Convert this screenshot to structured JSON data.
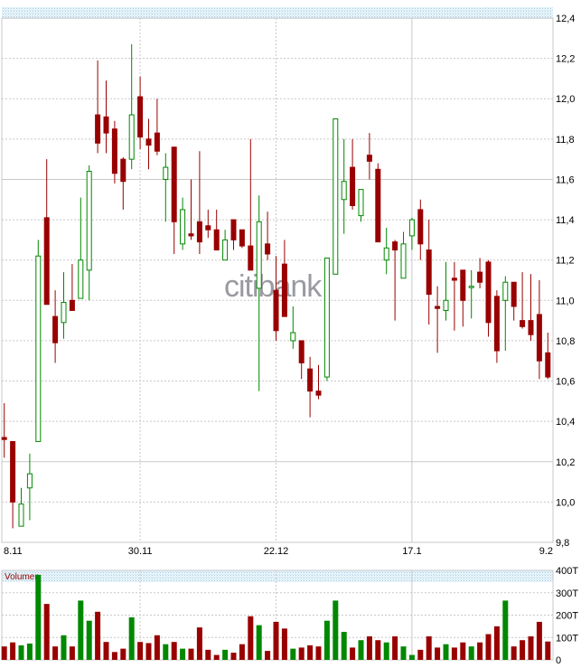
{
  "chart_data": [
    {
      "type": "candlestick",
      "watermark": "citibank",
      "ylim": [
        9.8,
        12.4
      ],
      "y_ticks": [
        "12,4",
        "12,2",
        "12,0",
        "11,8",
        "11,6",
        "11,4",
        "11,2",
        "11,0",
        "10,8",
        "10,6",
        "10,4",
        "10,2",
        "10,0",
        "9,8"
      ],
      "x_tick_labels": [
        {
          "label": "8.11",
          "index": 0
        },
        {
          "label": "30.11",
          "index": 16
        },
        {
          "label": "22.12",
          "index": 32
        },
        {
          "label": "17.1",
          "index": 48
        },
        {
          "label": "9.2",
          "index": 64
        }
      ],
      "grid": true,
      "colors": {
        "up": "#008800",
        "down": "#990000"
      },
      "ohlc": [
        [
          10.32,
          10.49,
          10.22,
          10.31
        ],
        [
          10.3,
          10.3,
          9.87,
          10.0
        ],
        [
          9.88,
          10.07,
          9.88,
          9.99
        ],
        [
          10.07,
          10.24,
          9.91,
          10.14
        ],
        [
          10.3,
          11.3,
          10.3,
          11.22
        ],
        [
          11.41,
          11.7,
          10.98,
          10.98
        ],
        [
          10.92,
          11.05,
          10.69,
          10.79
        ],
        [
          10.89,
          11.14,
          10.81,
          10.99
        ],
        [
          11.0,
          11.18,
          10.95,
          10.95
        ],
        [
          11.01,
          11.51,
          11.01,
          11.2
        ],
        [
          11.15,
          11.67,
          11.0,
          11.64
        ],
        [
          11.92,
          12.19,
          11.73,
          11.78
        ],
        [
          11.91,
          12.09,
          11.73,
          11.83
        ],
        [
          11.85,
          11.89,
          11.58,
          11.63
        ],
        [
          11.7,
          11.71,
          11.45,
          11.59
        ],
        [
          11.7,
          12.27,
          11.65,
          11.92
        ],
        [
          12.01,
          12.11,
          11.75,
          11.81
        ],
        [
          11.8,
          11.9,
          11.65,
          11.77
        ],
        [
          11.83,
          12.0,
          11.72,
          11.74
        ],
        [
          11.6,
          11.73,
          11.39,
          11.66
        ],
        [
          11.76,
          11.76,
          11.23,
          11.39
        ],
        [
          11.28,
          11.51,
          11.25,
          11.45
        ],
        [
          11.33,
          11.6,
          11.3,
          11.32
        ],
        [
          11.39,
          11.74,
          11.23,
          11.29
        ],
        [
          11.37,
          11.45,
          11.31,
          11.35
        ],
        [
          11.35,
          11.45,
          11.25,
          11.25
        ],
        [
          11.2,
          11.35,
          11.2,
          11.3
        ],
        [
          11.4,
          11.4,
          11.25,
          11.3
        ],
        [
          11.35,
          11.35,
          11.26,
          11.27
        ],
        [
          11.27,
          11.8,
          11.15,
          11.15
        ],
        [
          11.06,
          11.52,
          10.55,
          11.39
        ],
        [
          11.28,
          11.44,
          11.2,
          11.23
        ],
        [
          11.05,
          11.22,
          10.8,
          10.85
        ],
        [
          11.18,
          11.3,
          10.92,
          10.92
        ],
        [
          10.8,
          10.97,
          10.76,
          10.84
        ],
        [
          10.8,
          10.8,
          10.61,
          10.69
        ],
        [
          10.66,
          10.72,
          10.42,
          10.55
        ],
        [
          10.55,
          10.68,
          10.51,
          10.53
        ],
        [
          10.62,
          11.21,
          10.6,
          11.21
        ],
        [
          11.13,
          11.9,
          11.13,
          11.9
        ],
        [
          11.5,
          11.8,
          11.33,
          11.59
        ],
        [
          11.66,
          11.8,
          11.45,
          11.47
        ],
        [
          11.42,
          11.55,
          11.39,
          11.55
        ],
        [
          11.72,
          11.83,
          11.6,
          11.69
        ],
        [
          11.65,
          11.68,
          11.29,
          11.29
        ],
        [
          11.2,
          11.36,
          11.13,
          11.26
        ],
        [
          11.29,
          11.3,
          10.9,
          11.25
        ],
        [
          11.11,
          11.34,
          11.11,
          11.28
        ],
        [
          11.32,
          11.41,
          11.25,
          11.4
        ],
        [
          11.45,
          11.5,
          11.2,
          11.28
        ],
        [
          11.25,
          11.4,
          10.88,
          11.03
        ],
        [
          10.97,
          11.07,
          10.74,
          10.96
        ],
        [
          10.95,
          11.19,
          10.9,
          11.0
        ],
        [
          11.11,
          11.19,
          10.85,
          11.1
        ],
        [
          11.15,
          11.15,
          10.87,
          11.0
        ],
        [
          11.07,
          11.15,
          10.91,
          11.07
        ],
        [
          11.14,
          11.21,
          11.06,
          11.09
        ],
        [
          11.19,
          11.2,
          10.82,
          10.89
        ],
        [
          11.02,
          11.05,
          10.69,
          10.75
        ],
        [
          11.0,
          11.12,
          10.75,
          11.09
        ],
        [
          11.09,
          11.09,
          10.9,
          10.97
        ],
        [
          10.9,
          11.14,
          10.86,
          10.87
        ],
        [
          10.9,
          11.13,
          10.8,
          10.83
        ],
        [
          10.93,
          11.1,
          10.61,
          10.7
        ],
        [
          10.74,
          10.84,
          10.61,
          10.62
        ]
      ]
    },
    {
      "type": "bar",
      "title": "Volumen",
      "ylim": [
        0,
        400
      ],
      "y_ticks": [
        "400T",
        "300T",
        "200T",
        "100T",
        "0"
      ],
      "values": [
        60,
        78,
        65,
        73,
        380,
        250,
        60,
        110,
        60,
        265,
        175,
        215,
        80,
        35,
        50,
        190,
        80,
        75,
        110,
        70,
        80,
        50,
        50,
        145,
        45,
        22,
        45,
        32,
        70,
        195,
        155,
        40,
        170,
        140,
        50,
        55,
        65,
        60,
        175,
        265,
        125,
        55,
        88,
        105,
        88,
        78,
        105,
        60,
        22,
        45,
        105,
        55,
        70,
        55,
        78,
        60,
        78,
        115,
        150,
        265,
        60,
        88,
        105,
        170,
        82
      ],
      "colors_by_candle": true
    }
  ]
}
